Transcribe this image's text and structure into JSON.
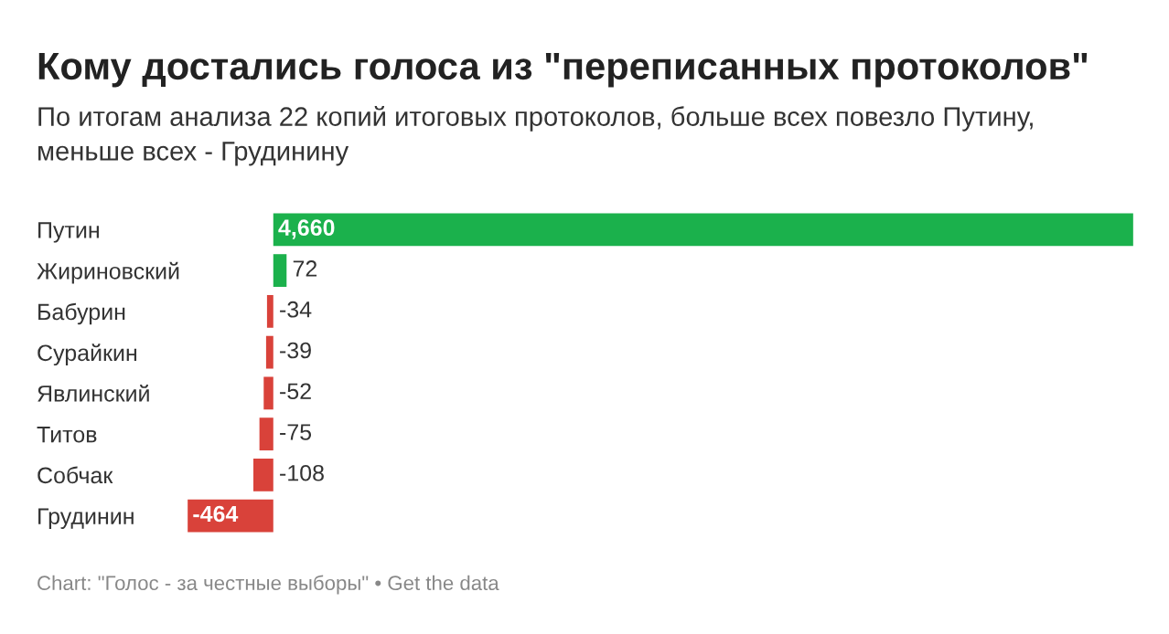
{
  "chart_data": {
    "type": "bar",
    "orientation": "horizontal",
    "title": "Кому достались голоса из \"переписанных протоколов\"",
    "subtitle": "По итогам анализа 22 копий итоговых протоколов, больше всех повезло Путину, меньше всех - Грудинину",
    "categories": [
      "Путин",
      "Жириновский",
      "Бабурин",
      "Сурайкин",
      "Явлинский",
      "Титов",
      "Собчак",
      "Грудинин"
    ],
    "values": [
      4660,
      72,
      -34,
      -39,
      -52,
      -75,
      -108,
      -464
    ],
    "value_labels": [
      "4,660",
      "72",
      "-34",
      "-39",
      "-52",
      "-75",
      "-108",
      "-464"
    ],
    "colors": [
      "#1bb14c",
      "#1bb14c",
      "#d9423a",
      "#d9423a",
      "#d9423a",
      "#d9423a",
      "#d9423a",
      "#d9423a"
    ],
    "grid": false,
    "annotations": [
      "Chart: \"Голос - за честные выборы\" • Get the data"
    ]
  }
}
